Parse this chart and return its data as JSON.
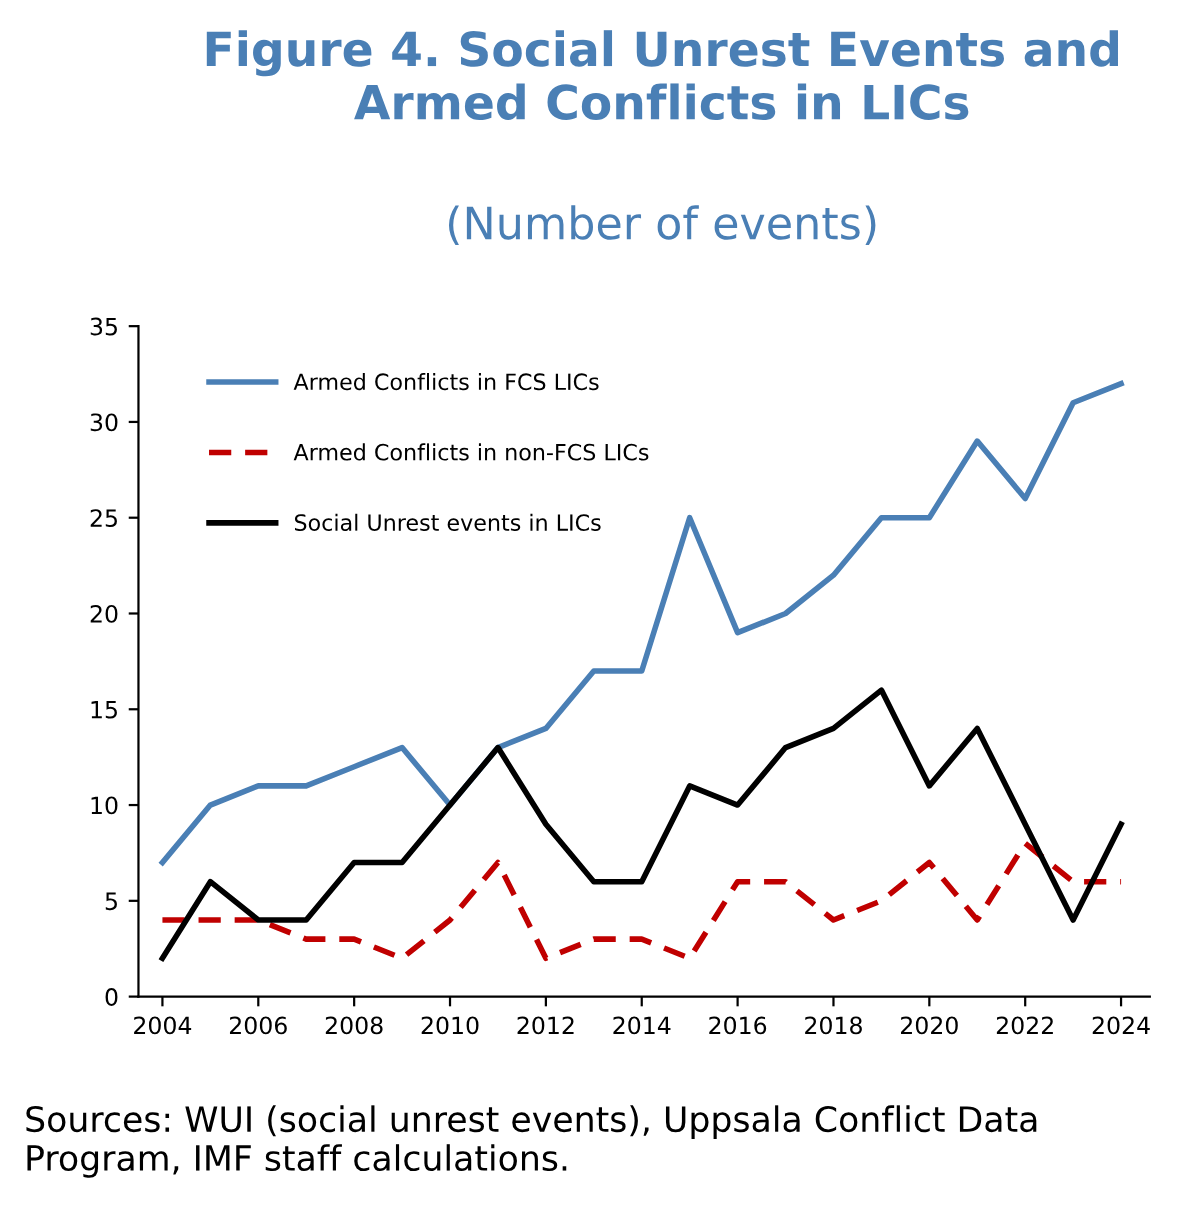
{
  "chart_data": {
    "type": "line",
    "title": "Figure 4. Social Unrest Events and Armed Conflicts in LICs",
    "subtitle": "(Number of events)",
    "x": [
      2004,
      2005,
      2006,
      2007,
      2008,
      2009,
      2010,
      2011,
      2012,
      2013,
      2014,
      2015,
      2016,
      2017,
      2018,
      2019,
      2020,
      2021,
      2022,
      2023,
      2024
    ],
    "series": [
      {
        "name": "Armed Conflicts in FCS LICs",
        "color": "#4a7fb5",
        "line_style": "solid",
        "values": [
          7,
          10,
          11,
          11,
          12,
          13,
          10,
          13,
          14,
          17,
          17,
          25,
          19,
          20,
          22,
          25,
          25,
          29,
          26,
          31,
          32
        ]
      },
      {
        "name": "Armed Conflicts in non-FCS LICs",
        "color": "#c00000",
        "line_style": "dashed",
        "values": [
          4,
          4,
          4,
          3,
          3,
          2,
          4,
          7,
          2,
          3,
          3,
          2,
          6,
          6,
          4,
          5,
          7,
          4,
          8,
          6,
          6
        ]
      },
      {
        "name": "Social Unrest events in LICs",
        "color": "#000000",
        "line_style": "solid",
        "values": [
          2,
          6,
          4,
          4,
          7,
          7,
          10,
          13,
          9,
          6,
          6,
          11,
          10,
          13,
          14,
          16,
          11,
          14,
          9,
          4,
          9
        ]
      }
    ],
    "xlim": [
      2003.5,
      2024.6
    ],
    "xticks": [
      2004,
      2006,
      2008,
      2010,
      2012,
      2014,
      2016,
      2018,
      2020,
      2022,
      2024
    ],
    "ylim": [
      0,
      35
    ],
    "yticks": [
      0,
      5,
      10,
      15,
      20,
      25,
      30,
      35
    ],
    "grid": false,
    "legend": "top left",
    "marker": "none",
    "annotations": [
      "Sources: WUI (social unrest events), Uppsala Conflict Data Program, IMF staff calculations."
    ]
  }
}
